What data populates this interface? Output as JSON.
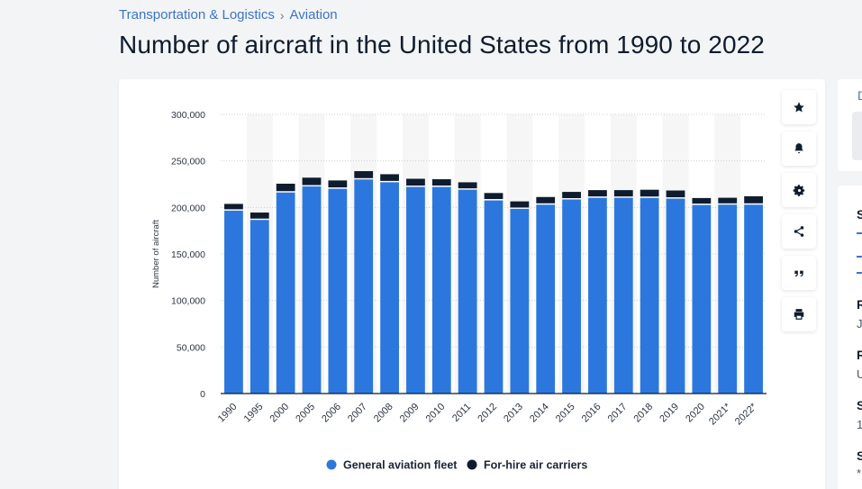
{
  "breadcrumb": {
    "items": [
      "Transportation & Logistics",
      "Aviation"
    ],
    "separator": "›"
  },
  "page_title": "Number of aircraft in the United States from 1990 to 2022",
  "colors": {
    "general_aviation": "#2c77de",
    "for_hire": "#0f1c2e",
    "accent": "#3c74c9"
  },
  "toolbar": {
    "icons": [
      "star-icon",
      "bell-icon",
      "gear-icon",
      "share-icon",
      "quote-icon",
      "print-icon"
    ]
  },
  "side_panel": {
    "top_letter": "D",
    "letters": [
      "S",
      "R",
      "R",
      "S",
      "S"
    ],
    "values": [
      "Ju",
      "U",
      "1",
      "*"
    ]
  },
  "chart_data": {
    "type": "bar",
    "stacked": true,
    "categories": [
      "1990",
      "1995",
      "2000",
      "2005",
      "2006",
      "2007",
      "2008",
      "2009",
      "2010",
      "2011",
      "2012",
      "2013",
      "2014",
      "2015",
      "2016",
      "2017",
      "2018",
      "2019",
      "2020",
      "2021*",
      "2022*"
    ],
    "series": [
      {
        "name": "General aviation fleet",
        "color": "#2c77de",
        "values": [
          198000,
          188000,
          217500,
          224000,
          221500,
          231500,
          228500,
          223500,
          223500,
          220500,
          209000,
          199900,
          204400,
          210000,
          211800,
          211800,
          211700,
          210900,
          204100,
          204400,
          204400
        ]
      },
      {
        "name": "For-hire air carriers",
        "color": "#0f1c2e",
        "values": [
          5800,
          6500,
          8000,
          8000,
          7500,
          7500,
          7200,
          7300,
          6800,
          6500,
          6500,
          6600,
          6800,
          6700,
          6800,
          6800,
          7300,
          7300,
          6000,
          6000,
          7600
        ]
      }
    ],
    "ylabel": "Number of aircraft",
    "xlabel": "",
    "ylim": [
      0,
      300000
    ],
    "yticks": [
      0,
      50000,
      100000,
      150000,
      200000,
      250000,
      300000
    ],
    "ytick_labels": [
      "0",
      "50,000",
      "100,000",
      "150,000",
      "200,000",
      "250,000",
      "300,000"
    ],
    "grid": true,
    "legend_position": "bottom-center"
  }
}
